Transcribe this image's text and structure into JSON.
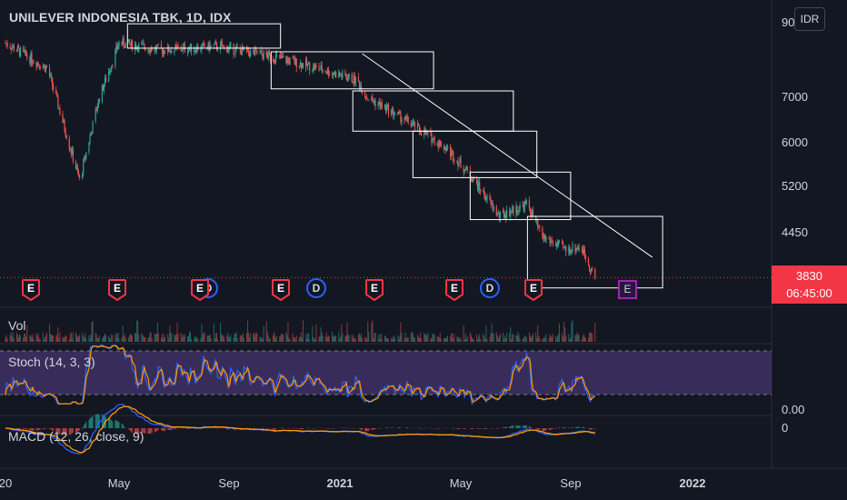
{
  "title": "UNILEVER INDONESIA TBK, 1D, IDX",
  "currency_button": "IDR",
  "price_axis": [
    "90",
    "7000",
    "6000",
    "5200",
    "4450"
  ],
  "last_price": {
    "price": "3830",
    "countdown": "06:45:00"
  },
  "time_axis": [
    "20",
    "May",
    "Sep",
    "2021",
    "May",
    "Sep",
    "2022"
  ],
  "panes": {
    "volume": {
      "label": "Vol"
    },
    "stoch": {
      "label": "Stoch (14, 3, 3)",
      "axis_value": "0.00"
    },
    "macd": {
      "label": "MACD (12, 26, close, 9)",
      "axis_value": "0"
    }
  },
  "events": {
    "earnings_label": "E",
    "dividend_label": "D",
    "future_label": "E"
  },
  "colors": {
    "background": "#131722",
    "up": "#26a69a",
    "down": "#ef5350",
    "stoch_k": "#2962ff",
    "stoch_d": "#ff9800",
    "stoch_band": "#7e57c2",
    "macd": "#2962ff",
    "signal": "#ff9800",
    "earnings": "#f23645",
    "dividend": "#2962ff",
    "future": "#9c27b0",
    "drawing": "#ffffff"
  },
  "chart_data": {
    "type": "candlestick",
    "symbol": "UNILEVER INDONESIA TBK",
    "interval": "1D",
    "exchange": "IDX",
    "x_range": [
      "2020-01",
      "2022-03"
    ],
    "y_range": [
      3700,
      9100
    ],
    "y_scale": "log",
    "last_close": 3830,
    "price_anchors": [
      {
        "date": "2020-01-01",
        "close": 8400
      },
      {
        "date": "2020-02-15",
        "close": 7700
      },
      {
        "date": "2020-03-20",
        "close": 5300
      },
      {
        "date": "2020-04-10",
        "close": 7000
      },
      {
        "date": "2020-05-01",
        "close": 8400
      },
      {
        "date": "2020-06-15",
        "close": 8200
      },
      {
        "date": "2020-08-15",
        "close": 8300
      },
      {
        "date": "2020-10-15",
        "close": 8000
      },
      {
        "date": "2020-12-01",
        "close": 7700
      },
      {
        "date": "2021-01-10",
        "close": 7400
      },
      {
        "date": "2021-01-20",
        "close": 7000
      },
      {
        "date": "2021-03-01",
        "close": 6500
      },
      {
        "date": "2021-04-15",
        "close": 5900
      },
      {
        "date": "2021-05-10",
        "close": 5400
      },
      {
        "date": "2021-06-10",
        "close": 4700
      },
      {
        "date": "2021-07-10",
        "close": 4900
      },
      {
        "date": "2021-07-25",
        "close": 4400
      },
      {
        "date": "2021-08-20",
        "close": 4200
      },
      {
        "date": "2021-09-05",
        "close": 4250
      },
      {
        "date": "2021-09-20",
        "close": 3830
      }
    ],
    "indicators": {
      "volume": "Vol",
      "stochastic": {
        "k": 14,
        "d": 3,
        "smooth": 3
      },
      "macd": {
        "fast": 12,
        "slow": 26,
        "source": "close",
        "signal": 9
      }
    },
    "earnings_dates": [
      "2020-01-28",
      "2020-04-25",
      "2020-07-25",
      "2020-10-25",
      "2021-01-28",
      "2021-04-25",
      "2021-07-25"
    ],
    "dividend_dates": [
      "2020-11-20",
      "2021-06-01"
    ],
    "upcoming_earnings_date": "2021-10-25",
    "drawings": {
      "rectangles": [
        {
          "from": "2020-05-10",
          "to": "2020-10-20",
          "high": 8950,
          "low": 8250
        },
        {
          "from": "2020-10-10",
          "to": "2021-04-01",
          "high": 8150,
          "low": 7200
        },
        {
          "from": "2021-01-05",
          "to": "2021-06-25",
          "high": 7150,
          "low": 6250
        },
        {
          "from": "2021-03-10",
          "to": "2021-07-20",
          "high": 6250,
          "low": 5350
        },
        {
          "from": "2021-05-10",
          "to": "2021-08-25",
          "high": 5450,
          "low": 4650
        },
        {
          "from": "2021-07-10",
          "to": "2021-12-01",
          "high": 4700,
          "low": 3700
        }
      ],
      "trendline": {
        "from": {
          "date": "2021-01-15",
          "price": 8100
        },
        "to": {
          "date": "2021-11-20",
          "price": 4100
        }
      }
    }
  }
}
